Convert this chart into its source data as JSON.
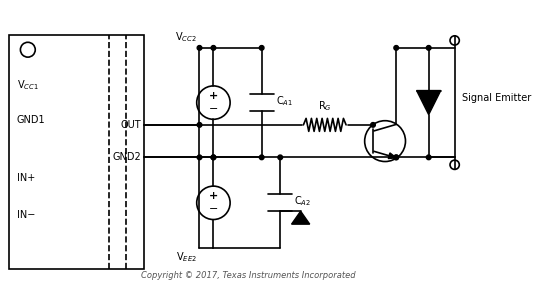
{
  "fig_width": 5.36,
  "fig_height": 2.98,
  "dpi": 100,
  "bg_color": "#ffffff",
  "line_color": "#000000",
  "line_width": 1.2,
  "copyright_text": "Copyright © 2017, Texas Instruments Incorporated",
  "labels": {
    "Vcc1": "V$_{CC1}$",
    "GND1": "GND1",
    "INplus": "IN+",
    "INminus": "IN−",
    "Vcc2": "V$_{CC2}$",
    "OUT": "OUT",
    "GND2": "GND2",
    "Vee2": "V$_{EE2}$",
    "CA1": "C$_{A1}$",
    "CA2": "C$_{A2}$",
    "RG": "R$_{G}$",
    "signal_emitter": "Signal Emitter"
  }
}
